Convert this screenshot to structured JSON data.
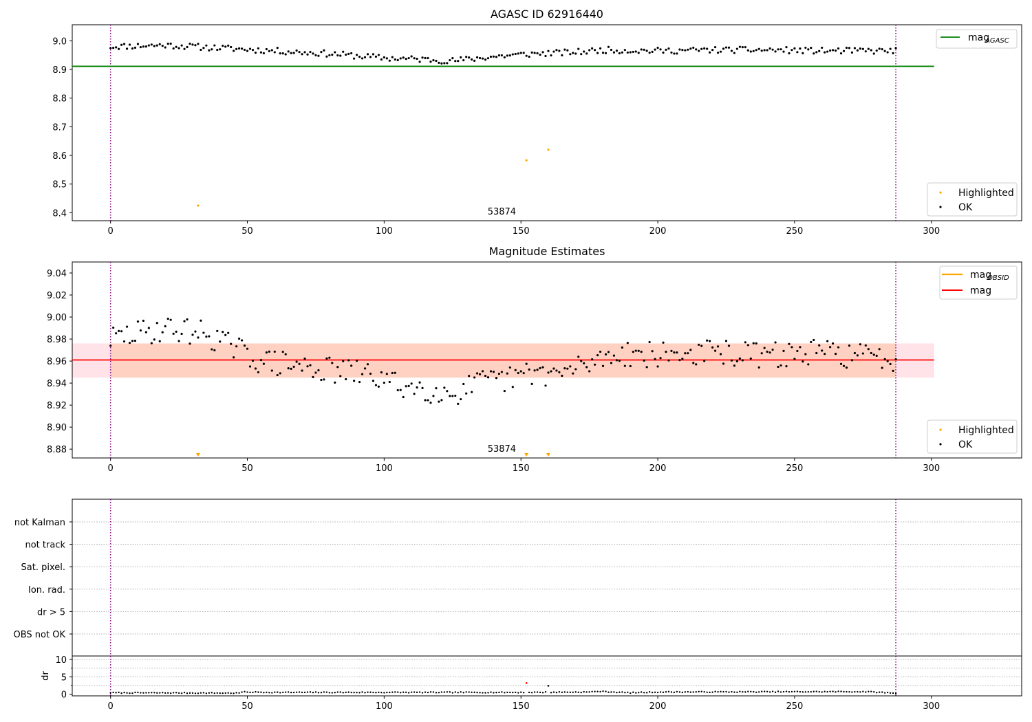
{
  "chart_data": [
    {
      "type": "scatter",
      "title": "AGASC ID 62916440",
      "xlim": [
        -14,
        333
      ],
      "ylim": [
        8.372,
        9.056
      ],
      "xticks": [
        0,
        50,
        100,
        150,
        200,
        250,
        300
      ],
      "yticks": [
        8.4,
        8.5,
        8.6,
        8.7,
        8.8,
        8.9,
        9.0
      ],
      "yticks_text": [
        "8.4",
        "8.5",
        "8.6",
        "8.7",
        "8.8",
        "8.9",
        "9.0"
      ],
      "vlines": [
        0,
        287
      ],
      "obsid_label": "53874",
      "reference_line": {
        "name": "mag",
        "subscript": "AGASC",
        "y": 8.911,
        "x_end": 301,
        "color": "#008000"
      },
      "legend_markers": [
        {
          "name": "Highlighted",
          "color": "#ffa500"
        },
        {
          "name": "OK",
          "color": "#000000"
        }
      ],
      "series": [
        {
          "name": "Highlighted",
          "color": "#ffa500",
          "x": [
            32,
            152,
            160
          ],
          "y": [
            8.425,
            8.583,
            8.62
          ]
        }
      ],
      "ok_curve": {
        "x": [
          0,
          20,
          40,
          60,
          80,
          100,
          115,
          125,
          140,
          155,
          170,
          180,
          200,
          220,
          240,
          260,
          287
        ],
        "y": [
          8.98,
          8.985,
          8.975,
          8.965,
          8.955,
          8.94,
          8.935,
          8.93,
          8.945,
          8.955,
          8.96,
          8.968,
          8.965,
          8.968,
          8.968,
          8.965,
          8.965
        ]
      }
    },
    {
      "type": "scatter",
      "title": "Magnitude Estimates",
      "xlim": [
        -14,
        333
      ],
      "ylim": [
        8.872,
        9.05
      ],
      "xticks": [
        0,
        50,
        100,
        150,
        200,
        250,
        300
      ],
      "yticks": [
        8.88,
        8.9,
        8.92,
        8.94,
        8.96,
        8.98,
        9.0,
        9.02,
        9.04
      ],
      "yticks_text": [
        "8.88",
        "8.90",
        "8.92",
        "8.94",
        "8.96",
        "8.98",
        "9.00",
        "9.02",
        "9.04"
      ],
      "vlines": [
        0,
        287
      ],
      "obsid_label": "53874",
      "mean_line": {
        "name": "mag",
        "y": 8.961,
        "color": "#ff0000"
      },
      "obsid_line": {
        "name": "mag",
        "subscript": "OBSID",
        "color": "#ffa500"
      },
      "bands": [
        {
          "y0": 8.945,
          "y1": 8.976,
          "color": "#ffc0cb"
        },
        {
          "y0": 8.945,
          "y1": 8.976,
          "color": "#ffb07c"
        }
      ],
      "legend_markers": [
        {
          "name": "Highlighted",
          "color": "#ffa500"
        },
        {
          "name": "OK",
          "color": "#000000"
        }
      ],
      "highlighted_x": [
        32,
        152,
        160
      ],
      "ok_curve": {
        "x": [
          0,
          10,
          20,
          35,
          45,
          55,
          70,
          85,
          95,
          105,
          115,
          125,
          135,
          145,
          155,
          165,
          175,
          185,
          200,
          220,
          240,
          260,
          287
        ],
        "y": [
          8.98,
          8.985,
          8.99,
          8.985,
          8.972,
          8.96,
          8.955,
          8.95,
          8.948,
          8.938,
          8.935,
          8.93,
          8.94,
          8.943,
          8.95,
          8.948,
          8.958,
          8.968,
          8.965,
          8.968,
          8.965,
          8.968,
          8.962
        ]
      }
    },
    {
      "type": "scatter",
      "title": "",
      "xlim": [
        -14,
        333
      ],
      "categories": [
        "not Kalman",
        "not track",
        "Sat. pixel.",
        "Ion. rad.",
        "dr > 5",
        "OBS not OK"
      ],
      "vlines": [
        0,
        287
      ]
    },
    {
      "type": "scatter",
      "title": "",
      "ylabel": "dr",
      "xlim": [
        -14,
        333
      ],
      "ylim": [
        -0.5,
        11
      ],
      "xticks": [
        0,
        50,
        100,
        150,
        200,
        250,
        300
      ],
      "yticks": [
        0,
        5,
        10
      ],
      "grid_y": [
        2.5,
        5,
        7.5,
        10
      ],
      "vlines": [
        0,
        287
      ],
      "highlighted": {
        "x": [
          152,
          160
        ],
        "y": [
          3.2,
          2.4
        ],
        "color": "#ff0000"
      },
      "ok_curve": {
        "x": [
          0,
          47,
          48,
          60,
          140,
          150,
          175,
          178,
          190,
          200,
          265,
          276,
          287
        ],
        "y": [
          0.4,
          0.3,
          0.6,
          0.5,
          0.5,
          0.5,
          0.6,
          0.8,
          0.4,
          0.6,
          0.7,
          0.7,
          0.3
        ]
      }
    }
  ]
}
